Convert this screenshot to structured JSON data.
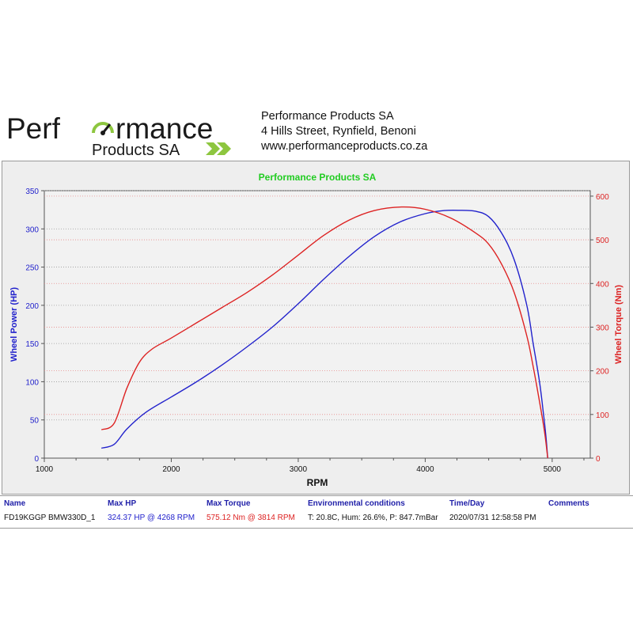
{
  "header": {
    "logo_line1": "Perf",
    "logo_line1_end": "rmance",
    "logo_line2": "Products SA",
    "company_name": "Performance Products SA",
    "address": "4 Hills Street, Rynfield, Benoni",
    "website": "www.performanceproducts.co.za"
  },
  "colors": {
    "power": "#2222cc",
    "torque": "#dd2222",
    "logo_green": "#8dc63f",
    "title_green": "#22cc22",
    "plot_bg": "#f2f2f2"
  },
  "chart_data": {
    "type": "line",
    "title": "Performance Products SA",
    "xlabel": "RPM",
    "ylabel": "Wheel Power (HP)",
    "y2label": "Wheel Torque (Nm)",
    "xlim": [
      1000,
      5300
    ],
    "ylim": [
      0,
      350
    ],
    "y2lim": [
      0,
      612.5
    ],
    "x_ticks": [
      "1000",
      "2000",
      "3000",
      "4000",
      "5000"
    ],
    "y_ticks": [
      "0",
      "50",
      "100",
      "150",
      "200",
      "250",
      "300",
      "350"
    ],
    "y2_ticks": [
      "0",
      "100",
      "200",
      "300",
      "400",
      "500",
      "600"
    ],
    "grid": true,
    "series": [
      {
        "name": "Wheel Power (HP)",
        "axis": "left",
        "x": [
          1450,
          1550,
          1650,
          1800,
          2000,
          2200,
          2400,
          2600,
          2800,
          3000,
          3200,
          3400,
          3600,
          3800,
          4000,
          4150,
          4268,
          4400,
          4500,
          4600,
          4700,
          4800,
          4850,
          4900,
          4930,
          4950,
          4965
        ],
        "y": [
          13,
          18,
          38,
          60,
          80,
          100,
          122,
          146,
          172,
          202,
          234,
          264,
          290,
          309,
          320,
          324,
          324.37,
          323,
          316,
          295,
          260,
          200,
          150,
          100,
          60,
          30,
          0
        ]
      },
      {
        "name": "Wheel Torque (Nm)",
        "axis": "right",
        "x": [
          1450,
          1550,
          1650,
          1750,
          1850,
          2000,
          2200,
          2400,
          2600,
          2800,
          3000,
          3200,
          3400,
          3600,
          3814,
          4000,
          4200,
          4400,
          4500,
          4600,
          4700,
          4800,
          4850,
          4900,
          4940,
          4965
        ],
        "y": [
          65,
          80,
          160,
          220,
          250,
          275,
          310,
          345,
          380,
          420,
          465,
          510,
          545,
          567,
          575.12,
          570,
          550,
          515,
          490,
          445,
          380,
          280,
          210,
          130,
          60,
          0
        ]
      }
    ]
  },
  "results": {
    "headers": {
      "name": "Name",
      "max_hp": "Max HP",
      "max_torque": "Max Torque",
      "env": "Environmental conditions",
      "time": "Time/Day",
      "comments": "Comments"
    },
    "row": {
      "name": "FD19KGGP BMW330D_1",
      "max_hp": "324.37 HP @ 4268 RPM",
      "max_torque": "575.12 Nm @ 3814 RPM",
      "env": "T: 20.8C, Hum: 26.6%, P: 847.7mBar",
      "time": "2020/07/31 12:58:58 PM",
      "comments": ""
    }
  }
}
